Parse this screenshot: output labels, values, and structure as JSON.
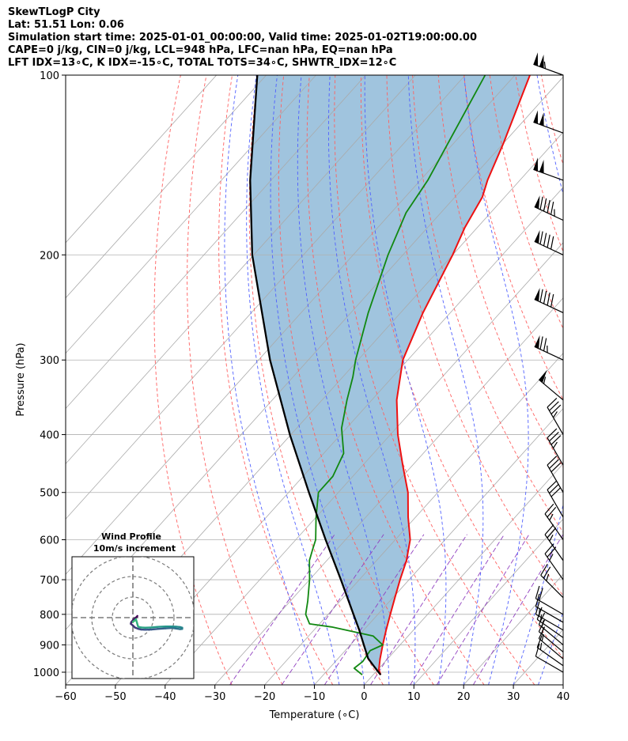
{
  "header": {
    "title": "SkewTLogP City",
    "location": "Lat: 51.51   Lon: 0.06",
    "times": "Simulation start time: 2025-01-01_00:00:00, Valid time: 2025-01-02T19:00:00.00",
    "params": "CAPE=0 j/kg, CIN=0 j/kg, LCL=948 hPa, LFC=nan hPa, EQ=nan hPa",
    "indices": "LFT IDX=13∘C, K IDX=-15∘C, TOTAL TOTS=34∘C, SHWTR_IDX=12∘C"
  },
  "colors": {
    "temperature": "#ee1111",
    "dewpoint": "#118811",
    "parcel": "#000000",
    "cape_fill": "#a0c4de",
    "dry_adiabat": "#ff6060",
    "moist_adiabat": "#5060ff",
    "isotherm": "#aaaaaa",
    "mixing_ratio": "#9040c0"
  },
  "chart_data": [
    {
      "type": "line",
      "chart": "skew-t log-p",
      "xlabel": "Temperature (∘C)",
      "ylabel": "Pressure (hPa)",
      "xlim": [
        -60,
        40
      ],
      "ylim": [
        1050,
        100
      ],
      "y_scale": "log",
      "x_ticks": [
        "−60",
        "−50",
        "−40",
        "−30",
        "−20",
        "−10",
        "0",
        "10",
        "20",
        "30",
        "40"
      ],
      "y_ticks": [
        "100",
        "200",
        "300",
        "400",
        "500",
        "600",
        "700",
        "800",
        "900",
        "1000"
      ],
      "x_tick_values": [
        -60,
        -50,
        -40,
        -30,
        -20,
        -10,
        0,
        10,
        20,
        30,
        40
      ],
      "y_tick_values": [
        100,
        200,
        300,
        400,
        500,
        600,
        700,
        800,
        900,
        1000
      ],
      "grid": true,
      "series": [
        {
          "key": "temperature",
          "pressure": [
            1010,
            990,
            950,
            900,
            850,
            800,
            750,
            700,
            650,
            600,
            550,
            500,
            450,
            400,
            350,
            300,
            250,
            200,
            180,
            160,
            150,
            130,
            100
          ],
          "values": [
            1.5,
            0.2,
            -1.5,
            -3.5,
            -5.5,
            -7.5,
            -9.6,
            -11.8,
            -14.0,
            -17.0,
            -21.5,
            -26.0,
            -32.0,
            -38.5,
            -45.0,
            -51.0,
            -55.5,
            -60.0,
            -62.5,
            -64.5,
            -66.5,
            -70.0,
            -77.0
          ]
        },
        {
          "key": "dewpoint",
          "pressure": [
            1010,
            985,
            960,
            920,
            900,
            870,
            840,
            830,
            800,
            760,
            700,
            650,
            620,
            600,
            550,
            500,
            470,
            430,
            390,
            350,
            320,
            300,
            250,
            200,
            170,
            150,
            100
          ],
          "values": [
            -2.2,
            -5.0,
            -4.5,
            -5.0,
            -3.5,
            -7.0,
            -17.0,
            -22.0,
            -24.5,
            -26.5,
            -30.0,
            -33.5,
            -35.0,
            -36.0,
            -40.0,
            -44.0,
            -44.0,
            -46.0,
            -51.0,
            -55.0,
            -58.0,
            -60.5,
            -66.5,
            -73.0,
            -77.0,
            -78.5,
            -86.0
          ]
        },
        {
          "key": "parcel",
          "pressure": [
            1010,
            1000,
            975,
            948,
            900,
            850,
            800,
            700,
            600,
            500,
            400,
            300,
            200,
            150,
            100
          ],
          "values": [
            1.5,
            0.6,
            -1.6,
            -4.0,
            -7.3,
            -10.9,
            -14.9,
            -23.7,
            -34.0,
            -45.9,
            -60.2,
            -77.7,
            -100.3,
            -114.2,
            -131.8
          ]
        }
      ]
    },
    {
      "type": "scatter",
      "chart": "hodograph",
      "title": "Wind Profile",
      "subtitle": "10m/s increment",
      "ring_step_ms": 10,
      "rings": [
        10,
        20,
        30
      ],
      "x": [
        0.0,
        0.8,
        1.5,
        2.0,
        2.5,
        3.0,
        4.0,
        6.0,
        9.0,
        12.0,
        16.0,
        19.0,
        21.0,
        23.0,
        24.0,
        24.0,
        23.0,
        21.0,
        19.0,
        16.0,
        12.0,
        9.0,
        6.0,
        4.0,
        2.5,
        1.0,
        0.0,
        -1.0,
        -0.8,
        -0.2,
        0.5,
        1.2,
        1.8,
        2.2
      ],
      "y": [
        -2.0,
        -1.5,
        -0.8,
        -2.5,
        -4.2,
        -4.6,
        -4.8,
        -4.9,
        -4.8,
        -4.5,
        -4.3,
        -4.3,
        -4.4,
        -4.6,
        -4.9,
        -5.5,
        -5.6,
        -5.3,
        -5.0,
        -5.2,
        -5.5,
        -5.8,
        -5.9,
        -5.8,
        -5.4,
        -4.8,
        -3.8,
        -3.0,
        -2.2,
        -1.5,
        -0.7,
        -0.2,
        0.3,
        0.8
      ]
    }
  ],
  "wind_barbs": {
    "pressure": [
      1000,
      975,
      950,
      925,
      900,
      875,
      850,
      825,
      800,
      750,
      700,
      650,
      600,
      550,
      500,
      450,
      400,
      350,
      300,
      250,
      200,
      175,
      150,
      125,
      100
    ],
    "speed_kt": [
      11,
      13,
      13,
      15,
      16,
      15,
      13,
      12,
      18,
      25,
      25,
      26,
      27,
      30,
      30,
      35,
      35,
      55,
      75,
      90,
      90,
      95,
      100,
      100,
      105
    ],
    "direction_deg": [
      300,
      305,
      310,
      310,
      310,
      305,
      300,
      300,
      300,
      315,
      325,
      325,
      325,
      330,
      330,
      330,
      330,
      310,
      295,
      295,
      295,
      295,
      290,
      290,
      290
    ]
  }
}
